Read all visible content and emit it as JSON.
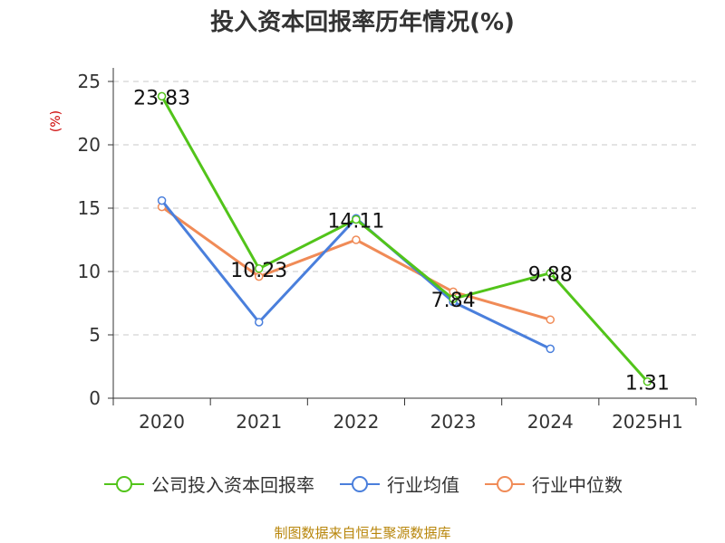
{
  "chart_data": {
    "type": "line",
    "title": "投入资本回报率历年情况(%)",
    "ylabel": "(%)",
    "xlabel": "",
    "categories": [
      "2020",
      "2021",
      "2022",
      "2023",
      "2024",
      "2025H1"
    ],
    "ylim": [
      0,
      25
    ],
    "yticks": [
      0,
      5,
      10,
      15,
      20,
      25
    ],
    "grid": true,
    "legend_position": "bottom",
    "series": [
      {
        "name": "公司投入资本回报率",
        "color": "#52c41a",
        "values": [
          23.83,
          10.23,
          14.11,
          7.84,
          9.88,
          1.31
        ],
        "labels": [
          "23.83",
          "10.23",
          "14.11",
          "7.84",
          "9.88",
          "1.31"
        ]
      },
      {
        "name": "行业均值",
        "color": "#4a7fdc",
        "values": [
          15.6,
          6.0,
          14.2,
          7.6,
          3.9,
          null
        ]
      },
      {
        "name": "行业中位数",
        "color": "#f08b57",
        "values": [
          15.1,
          9.6,
          12.5,
          8.4,
          6.2,
          null
        ]
      }
    ]
  },
  "source": "制图数据来自恒生聚源数据库"
}
